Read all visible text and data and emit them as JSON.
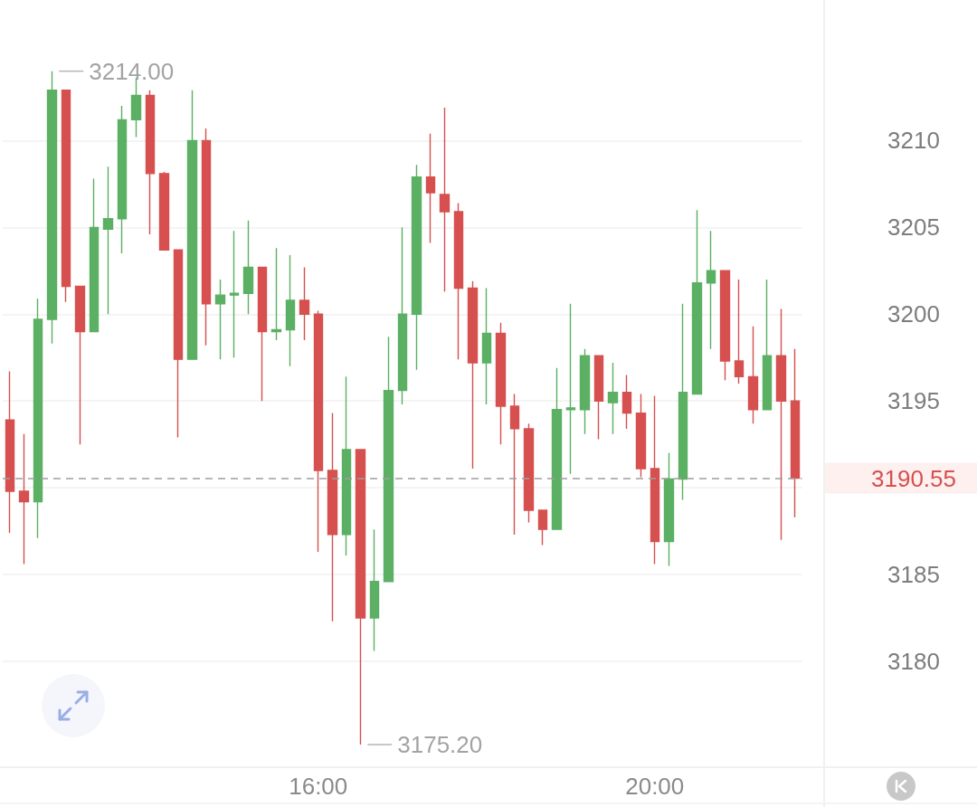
{
  "chart_data": {
    "type": "candlestick",
    "categories": [
      null,
      null,
      null,
      null,
      null,
      null,
      null,
      null,
      null,
      null,
      null,
      null,
      null,
      null,
      null,
      null,
      null,
      null,
      null,
      null,
      null,
      null,
      "16:00",
      null,
      null,
      null,
      null,
      null,
      null,
      null,
      null,
      null,
      null,
      null,
      null,
      null,
      null,
      null,
      null,
      null,
      null,
      null,
      null,
      null,
      null,
      null,
      "20:00",
      null,
      null,
      null,
      null,
      null,
      null,
      null,
      null,
      null,
      null
    ],
    "ohlc": [
      [
        3193.9,
        3196.7,
        3187.4,
        3189.8
      ],
      [
        3189.8,
        3193.1,
        3185.6,
        3189.2
      ],
      [
        3189.2,
        3200.9,
        3187.1,
        3199.7
      ],
      [
        3199.7,
        3214.0,
        3198.3,
        3212.9
      ],
      [
        3212.9,
        3212.9,
        3200.7,
        3201.6
      ],
      [
        3201.6,
        3201.6,
        3192.5,
        3199.0
      ],
      [
        3199.0,
        3207.8,
        3199.0,
        3205.0
      ],
      [
        3204.9,
        3208.5,
        3200.0,
        3205.5
      ],
      [
        3205.5,
        3212.0,
        3203.5,
        3211.2
      ],
      [
        3211.2,
        3213.6,
        3210.2,
        3212.6
      ],
      [
        3212.6,
        3212.9,
        3204.6,
        3208.1
      ],
      [
        3208.1,
        3208.2,
        3203.7,
        3203.7
      ],
      [
        3203.7,
        3203.7,
        3192.9,
        3197.4
      ],
      [
        3197.4,
        3212.9,
        3197.4,
        3210.0
      ],
      [
        3210.0,
        3210.7,
        3198.2,
        3200.6
      ],
      [
        3200.6,
        3202.0,
        3197.4,
        3201.1
      ],
      [
        3201.1,
        3204.8,
        3197.5,
        3201.2
      ],
      [
        3201.2,
        3205.4,
        3200.0,
        3202.7
      ],
      [
        3202.7,
        3202.7,
        3195.0,
        3199.0
      ],
      [
        3199.0,
        3203.8,
        3198.5,
        3199.1
      ],
      [
        3199.1,
        3203.4,
        3197.0,
        3200.8
      ],
      [
        3200.8,
        3202.7,
        3198.5,
        3200.0
      ],
      [
        3200.0,
        3200.2,
        3186.3,
        3191.0
      ],
      [
        3191.0,
        3194.3,
        3182.3,
        3187.3
      ],
      [
        3187.3,
        3196.4,
        3186.1,
        3192.2
      ],
      [
        3192.2,
        3192.2,
        3175.2,
        3182.5
      ],
      [
        3182.5,
        3187.6,
        3180.6,
        3184.6
      ],
      [
        3184.6,
        3198.7,
        3184.6,
        3195.6
      ],
      [
        3195.6,
        3205.0,
        3194.8,
        3200.0
      ],
      [
        3200.0,
        3208.6,
        3196.8,
        3207.9
      ],
      [
        3207.9,
        3210.4,
        3204.1,
        3207.0
      ],
      [
        3206.9,
        3211.9,
        3201.3,
        3205.9
      ],
      [
        3205.9,
        3206.4,
        3197.4,
        3201.5
      ],
      [
        3201.5,
        3201.9,
        3191.1,
        3197.2
      ],
      [
        3197.2,
        3201.5,
        3194.8,
        3198.9
      ],
      [
        3198.9,
        3199.5,
        3192.5,
        3194.7
      ],
      [
        3194.7,
        3195.4,
        3187.3,
        3193.4
      ],
      [
        3193.4,
        3193.7,
        3188.0,
        3188.7
      ],
      [
        3188.7,
        3188.7,
        3186.7,
        3187.6
      ],
      [
        3187.6,
        3196.9,
        3187.6,
        3194.5
      ],
      [
        3194.5,
        3200.6,
        3190.8,
        3194.6
      ],
      [
        3194.5,
        3198.0,
        3193.1,
        3197.6
      ],
      [
        3197.6,
        3197.6,
        3192.8,
        3195.0
      ],
      [
        3194.9,
        3197.2,
        3193.1,
        3195.5
      ],
      [
        3195.5,
        3196.5,
        3193.4,
        3194.3
      ],
      [
        3194.3,
        3195.4,
        3190.6,
        3191.1
      ],
      [
        3191.1,
        3195.3,
        3185.6,
        3186.9
      ],
      [
        3186.9,
        3192.0,
        3185.5,
        3190.5
      ],
      [
        3190.5,
        3200.6,
        3189.3,
        3195.5
      ],
      [
        3195.4,
        3206.0,
        3195.4,
        3201.8
      ],
      [
        3201.8,
        3204.8,
        3198.0,
        3202.5
      ],
      [
        3202.5,
        3202.5,
        3196.2,
        3197.3
      ],
      [
        3197.3,
        3202.0,
        3196.0,
        3196.4
      ],
      [
        3196.4,
        3199.3,
        3193.7,
        3194.5
      ],
      [
        3194.5,
        3202.0,
        3194.5,
        3197.6
      ],
      [
        3197.6,
        3200.3,
        3187.0,
        3195.0
      ],
      [
        3195.0,
        3198.0,
        3188.3,
        3190.55
      ]
    ],
    "colors": [
      "#d6504f",
      "#d6504f",
      "#5bb064",
      "#5bb064",
      "#d6504f",
      "#d6504f",
      "#5bb064",
      "#5bb064",
      "#5bb064",
      "#5bb064",
      "#d6504f",
      "#d6504f",
      "#d6504f",
      "#5bb064",
      "#d6504f",
      "#5bb064",
      "#5bb064",
      "#5bb064",
      "#d6504f",
      "#5bb064",
      "#5bb064",
      "#d6504f",
      "#d6504f",
      "#d6504f",
      "#5bb064",
      "#d6504f",
      "#5bb064",
      "#5bb064",
      "#5bb064",
      "#5bb064",
      "#d6504f",
      "#d6504f",
      "#d6504f",
      "#d6504f",
      "#5bb064",
      "#d6504f",
      "#d6504f",
      "#d6504f",
      "#d6504f",
      "#5bb064",
      "#5bb064",
      "#5bb064",
      "#d6504f",
      "#5bb064",
      "#d6504f",
      "#d6504f",
      "#d6504f",
      "#5bb064",
      "#5bb064",
      "#5bb064",
      "#5bb064",
      "#d6504f",
      "#d6504f",
      "#d6504f",
      "#5bb064",
      "#d6504f",
      "#d6504f"
    ],
    "ylim": [
      3173.9,
      3218.1
    ],
    "yticks": [
      3180,
      3185,
      {
        "value": 3190,
        "label": null
      },
      3195,
      3200,
      3205,
      3210
    ],
    "grid": "y",
    "ref_lines": [
      {
        "axis": "y",
        "value": 3190.55,
        "label": "3190.55",
        "color": "#9e9e9e",
        "line_style": "dashed"
      }
    ],
    "annotations": [
      "3214.00",
      "3175.20"
    ]
  }
}
